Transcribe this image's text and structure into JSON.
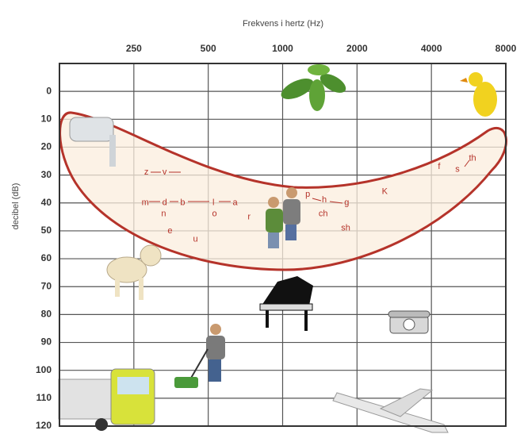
{
  "chart_data": {
    "type": "scatter",
    "title": "Frekvens i hertz (Hz)",
    "y_label": "decibel (dB)",
    "x": [
      281,
      333,
      278,
      333,
      394,
      330,
      350,
      444,
      525,
      642,
      530,
      732,
      1264,
      1475,
      1817,
      1460,
      1800,
      2590,
      4300,
      5100,
      5870
    ],
    "values": [
      29,
      29,
      40,
      40,
      40,
      44,
      50,
      53,
      40,
      40,
      44,
      45,
      37,
      39,
      40,
      44,
      49,
      36,
      27,
      28,
      24
    ],
    "point_labels": [
      "z",
      "v",
      "m",
      "d",
      "b",
      "n",
      "e",
      "u",
      "l",
      "a",
      "o",
      "r",
      "p",
      "h",
      "g",
      "ch",
      "sh",
      "K",
      "f",
      "s",
      "th"
    ],
    "color": "#b5332a",
    "xlim": [
      125,
      8000
    ],
    "xticks": [
      250,
      500,
      1000,
      2000,
      4000,
      8000
    ],
    "x_log": true,
    "x_axis_position": "top",
    "ylim": [
      -10,
      120
    ],
    "yticks": [
      0,
      10,
      20,
      30,
      40,
      50,
      60,
      70,
      80,
      90,
      100,
      110,
      120
    ],
    "y_inverted": true,
    "grid": true
  }
}
